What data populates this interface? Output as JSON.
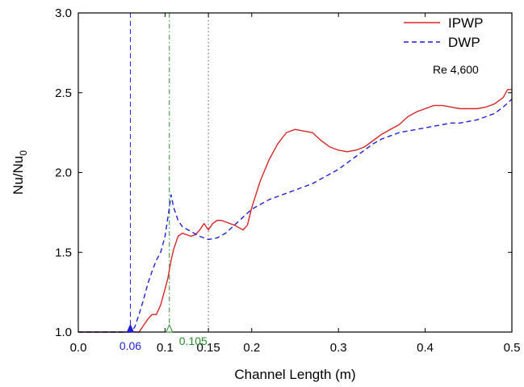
{
  "chart_data": {
    "type": "line",
    "title": "",
    "xlabel": "Channel Length (m)",
    "ylabel_main": "Nu/Nu",
    "ylabel_sub": "0",
    "xlim": [
      0.0,
      0.5
    ],
    "ylim": [
      1.0,
      3.0
    ],
    "x_ticks": [
      {
        "value": 0.0,
        "label": "0.0"
      },
      {
        "value": 0.1,
        "label": "0.1"
      },
      {
        "value": 0.15,
        "label": "0.15"
      },
      {
        "value": 0.2,
        "label": "0.2"
      },
      {
        "value": 0.3,
        "label": "0.3"
      },
      {
        "value": 0.4,
        "label": "0.4"
      },
      {
        "value": 0.5,
        "label": "0.5"
      }
    ],
    "y_ticks": [
      {
        "value": 1.0,
        "label": "1.0"
      },
      {
        "value": 1.5,
        "label": "1.5"
      },
      {
        "value": 2.0,
        "label": "2.0"
      },
      {
        "value": 2.5,
        "label": "2.5"
      },
      {
        "value": 3.0,
        "label": "3.0"
      }
    ],
    "legend_position": "top-right",
    "annotation": "Re 4,600",
    "grid": false,
    "series": [
      {
        "name": "IPWP",
        "color": "#d62728",
        "dash": "solid",
        "points": [
          [
            0.0,
            1.0
          ],
          [
            0.065,
            1.0
          ],
          [
            0.07,
            1.0
          ],
          [
            0.075,
            1.04
          ],
          [
            0.08,
            1.08
          ],
          [
            0.085,
            1.11
          ],
          [
            0.09,
            1.11
          ],
          [
            0.095,
            1.17
          ],
          [
            0.1,
            1.27
          ],
          [
            0.103,
            1.33
          ],
          [
            0.107,
            1.45
          ],
          [
            0.11,
            1.52
          ],
          [
            0.115,
            1.6
          ],
          [
            0.12,
            1.62
          ],
          [
            0.125,
            1.61
          ],
          [
            0.13,
            1.6
          ],
          [
            0.135,
            1.61
          ],
          [
            0.14,
            1.64
          ],
          [
            0.145,
            1.68
          ],
          [
            0.15,
            1.64
          ],
          [
            0.155,
            1.68
          ],
          [
            0.16,
            1.7
          ],
          [
            0.165,
            1.7
          ],
          [
            0.17,
            1.69
          ],
          [
            0.18,
            1.67
          ],
          [
            0.19,
            1.64
          ],
          [
            0.195,
            1.67
          ],
          [
            0.2,
            1.78
          ],
          [
            0.21,
            1.95
          ],
          [
            0.22,
            2.08
          ],
          [
            0.23,
            2.18
          ],
          [
            0.24,
            2.25
          ],
          [
            0.25,
            2.27
          ],
          [
            0.26,
            2.26
          ],
          [
            0.27,
            2.25
          ],
          [
            0.28,
            2.2
          ],
          [
            0.29,
            2.16
          ],
          [
            0.3,
            2.14
          ],
          [
            0.31,
            2.13
          ],
          [
            0.32,
            2.14
          ],
          [
            0.33,
            2.16
          ],
          [
            0.34,
            2.2
          ],
          [
            0.35,
            2.24
          ],
          [
            0.36,
            2.27
          ],
          [
            0.37,
            2.3
          ],
          [
            0.38,
            2.35
          ],
          [
            0.39,
            2.38
          ],
          [
            0.4,
            2.4
          ],
          [
            0.41,
            2.42
          ],
          [
            0.42,
            2.42
          ],
          [
            0.43,
            2.41
          ],
          [
            0.44,
            2.4
          ],
          [
            0.45,
            2.4
          ],
          [
            0.46,
            2.4
          ],
          [
            0.47,
            2.41
          ],
          [
            0.48,
            2.43
          ],
          [
            0.49,
            2.47
          ],
          [
            0.495,
            2.52
          ],
          [
            0.5,
            2.52
          ]
        ]
      },
      {
        "name": "DWP",
        "color": "#1f1fd6",
        "dash": "dashed",
        "points": [
          [
            0.0,
            1.0
          ],
          [
            0.06,
            1.0
          ],
          [
            0.065,
            1.03
          ],
          [
            0.07,
            1.11
          ],
          [
            0.075,
            1.2
          ],
          [
            0.08,
            1.3
          ],
          [
            0.085,
            1.38
          ],
          [
            0.09,
            1.45
          ],
          [
            0.095,
            1.5
          ],
          [
            0.1,
            1.6
          ],
          [
            0.105,
            1.78
          ],
          [
            0.107,
            1.86
          ],
          [
            0.11,
            1.78
          ],
          [
            0.115,
            1.7
          ],
          [
            0.12,
            1.66
          ],
          [
            0.13,
            1.63
          ],
          [
            0.14,
            1.6
          ],
          [
            0.15,
            1.58
          ],
          [
            0.16,
            1.59
          ],
          [
            0.17,
            1.62
          ],
          [
            0.18,
            1.67
          ],
          [
            0.19,
            1.72
          ],
          [
            0.2,
            1.77
          ],
          [
            0.21,
            1.8
          ],
          [
            0.22,
            1.83
          ],
          [
            0.23,
            1.85
          ],
          [
            0.24,
            1.87
          ],
          [
            0.25,
            1.89
          ],
          [
            0.26,
            1.91
          ],
          [
            0.27,
            1.93
          ],
          [
            0.28,
            1.96
          ],
          [
            0.29,
            1.99
          ],
          [
            0.3,
            2.02
          ],
          [
            0.31,
            2.06
          ],
          [
            0.32,
            2.1
          ],
          [
            0.33,
            2.14
          ],
          [
            0.34,
            2.18
          ],
          [
            0.35,
            2.21
          ],
          [
            0.36,
            2.23
          ],
          [
            0.37,
            2.25
          ],
          [
            0.38,
            2.26
          ],
          [
            0.39,
            2.27
          ],
          [
            0.4,
            2.28
          ],
          [
            0.41,
            2.29
          ],
          [
            0.42,
            2.3
          ],
          [
            0.43,
            2.31
          ],
          [
            0.44,
            2.31
          ],
          [
            0.45,
            2.32
          ],
          [
            0.46,
            2.33
          ],
          [
            0.47,
            2.35
          ],
          [
            0.48,
            2.37
          ],
          [
            0.49,
            2.41
          ],
          [
            0.5,
            2.46
          ]
        ]
      }
    ],
    "reference_lines": [
      {
        "x": 0.06,
        "label": "0.06",
        "color": "#1f1fd6",
        "style": "dashed",
        "marker": "filled-triangle"
      },
      {
        "x": 0.105,
        "label": "0.105",
        "color": "#2e8b2e",
        "style": "dash-dot",
        "marker": "open-triangle"
      },
      {
        "x": 0.15,
        "label": "",
        "color": "#555555",
        "style": "dotted",
        "marker": "none"
      }
    ]
  }
}
